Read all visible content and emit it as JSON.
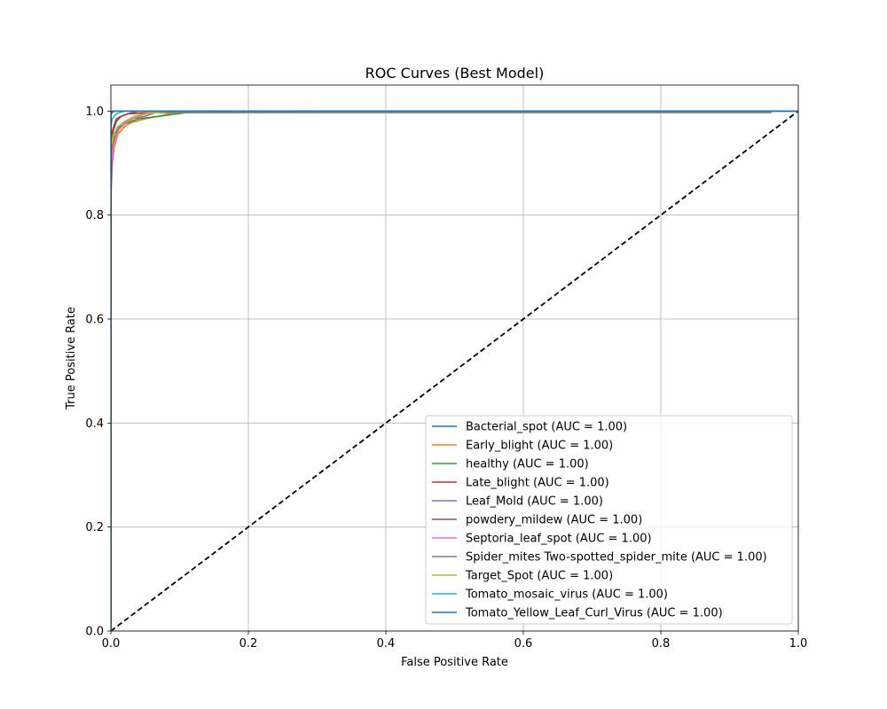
{
  "chart_data": {
    "type": "line",
    "title": "ROC Curves (Best Model)",
    "xlabel": "False Positive Rate",
    "ylabel": "True Positive Rate",
    "xlim": [
      0.0,
      1.0
    ],
    "ylim": [
      0.0,
      1.05
    ],
    "x_ticks": [
      "0.0",
      "0.2",
      "0.4",
      "0.6",
      "0.8",
      "1.0"
    ],
    "y_ticks": [
      "0.0",
      "0.2",
      "0.4",
      "0.6",
      "0.8",
      "1.0"
    ],
    "grid": true,
    "legend_position": "lower-right",
    "diagonal": {
      "x": [
        0,
        1
      ],
      "y": [
        0,
        1
      ],
      "color": "#000000",
      "style": "dashed"
    },
    "series": [
      {
        "name": "Bacterial_spot (AUC = 1.00)",
        "color": "#1f77b4",
        "x": [
          0,
          0,
          0.003,
          0.008,
          0.015,
          0.025,
          0.04,
          1.0
        ],
        "y": [
          0,
          0.9,
          0.96,
          0.98,
          0.99,
          0.995,
          1.0,
          1.0
        ]
      },
      {
        "name": "Early_blight (AUC = 1.00)",
        "color": "#ff7f0e",
        "x": [
          0,
          0,
          0.005,
          0.01,
          0.02,
          0.03,
          0.05,
          0.07,
          0.085,
          0.1,
          1.0
        ],
        "y": [
          0,
          0.88,
          0.93,
          0.955,
          0.97,
          0.978,
          0.985,
          0.99,
          0.995,
          1.0,
          1.0
        ]
      },
      {
        "name": "healthy (AUC = 1.00)",
        "color": "#2ca02c",
        "x": [
          0,
          0,
          0.003,
          0.01,
          0.02,
          0.04,
          0.07,
          0.11,
          1.0
        ],
        "y": [
          0,
          0.92,
          0.955,
          0.965,
          0.975,
          0.985,
          0.99,
          0.997,
          1.0
        ]
      },
      {
        "name": "Late_blight (AUC = 1.00)",
        "color": "#d62728",
        "x": [
          0,
          0,
          0.004,
          0.008,
          0.015,
          0.025,
          0.06,
          0.1,
          1.0
        ],
        "y": [
          0,
          0.95,
          0.97,
          0.985,
          0.99,
          0.995,
          0.997,
          1.0,
          1.0
        ]
      },
      {
        "name": "Leaf_Mold (AUC = 1.00)",
        "color": "#9467bd",
        "x": [
          0,
          0,
          0.002,
          0.004,
          0.008,
          0.015,
          0.03,
          0.05,
          0.07,
          1.0
        ],
        "y": [
          0,
          0.83,
          0.9,
          0.94,
          0.96,
          0.975,
          0.985,
          0.99,
          1.0,
          1.0
        ]
      },
      {
        "name": "powdery_mildew (AUC = 1.00)",
        "color": "#8c564b",
        "x": [
          0,
          0,
          0.005,
          1.0
        ],
        "y": [
          0,
          0.995,
          1.0,
          1.0
        ]
      },
      {
        "name": "Septoria_leaf_spot (AUC = 1.00)",
        "color": "#e377c2",
        "x": [
          0,
          0,
          0.005,
          0.012,
          0.025,
          0.04,
          0.06,
          1.0
        ],
        "y": [
          0,
          0.9,
          0.94,
          0.965,
          0.98,
          0.99,
          1.0,
          1.0
        ]
      },
      {
        "name": "Spider_mites Two-spotted_spider_mite (AUC = 1.00)",
        "color": "#7f7f7f",
        "x": [
          0,
          0,
          0.005,
          0.012,
          0.02,
          0.035,
          0.06,
          0.96,
          0.96,
          1.0
        ],
        "y": [
          0,
          0.92,
          0.95,
          0.97,
          0.98,
          0.99,
          0.997,
          0.997,
          1.0,
          1.0
        ]
      },
      {
        "name": "Target_Spot (AUC = 1.00)",
        "color": "#bcbd22",
        "x": [
          0,
          0,
          0.004,
          0.01,
          0.02,
          0.035,
          0.05,
          0.08,
          1.0
        ],
        "y": [
          0,
          0.93,
          0.955,
          0.97,
          0.98,
          0.99,
          0.995,
          1.0,
          1.0
        ]
      },
      {
        "name": "Tomato_mosaic_virus (AUC = 1.00)",
        "color": "#17becf",
        "x": [
          0,
          0,
          0.002,
          0.008,
          0.02,
          1.0
        ],
        "y": [
          0,
          0.97,
          0.985,
          0.995,
          1.0,
          1.0
        ]
      },
      {
        "name": "Tomato_Yellow_Leaf_Curl_Virus (AUC = 1.00)",
        "color": "#1f77b4",
        "x": [
          0,
          0,
          0.002,
          1.0
        ],
        "y": [
          0,
          0.998,
          1.0,
          1.0
        ]
      }
    ]
  }
}
